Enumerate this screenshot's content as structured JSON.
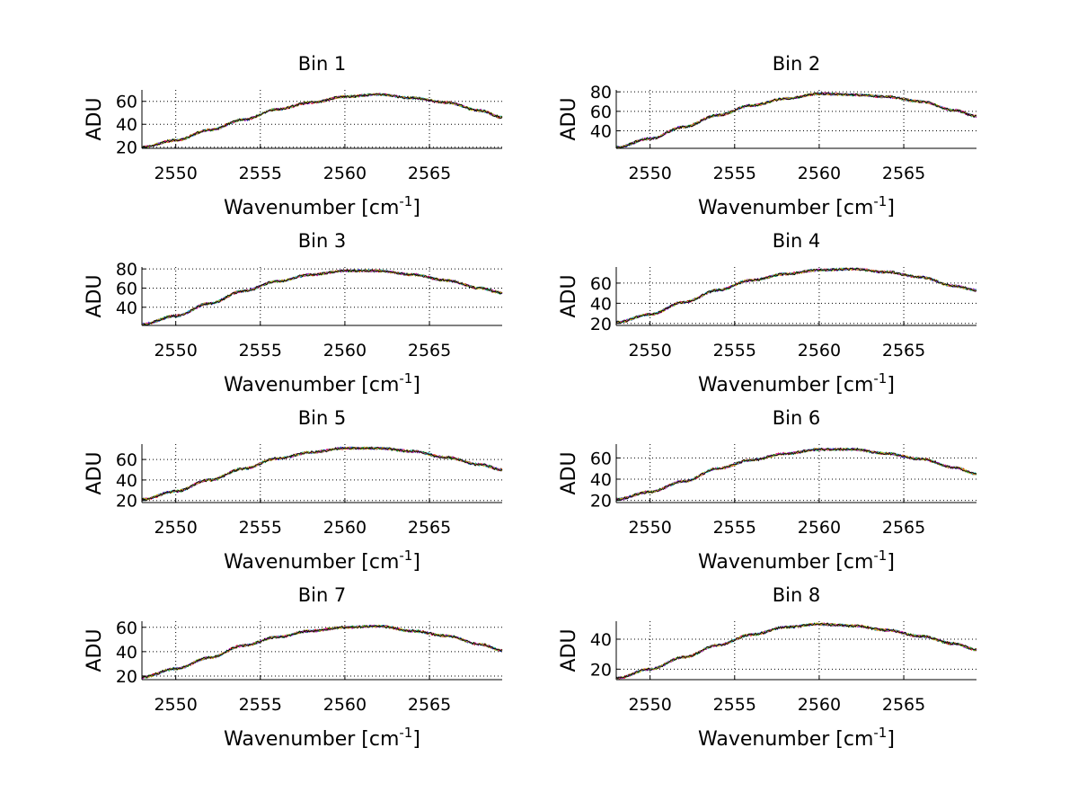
{
  "figure": {
    "background": "#ffffff",
    "series_colors": [
      "#0000ff",
      "#00a000",
      "#ff0000",
      "#00bfbf",
      "#bf00bf",
      "#bfbf00",
      "#000000"
    ]
  },
  "chart_data": [
    {
      "type": "line",
      "title": "Bin 1",
      "xlabel": "Wavenumber [cm",
      "xlabel_sup": "-1",
      "xlabel_end": "]",
      "ylabel": "ADU",
      "xlim": [
        2548,
        2569.3
      ],
      "ylim": [
        19,
        70
      ],
      "xticks": [
        2550,
        2555,
        2560,
        2565
      ],
      "yticks": [
        20,
        40,
        60
      ],
      "grid": true,
      "x": [
        2548,
        2550,
        2552,
        2554,
        2556,
        2558,
        2560,
        2562,
        2564,
        2566,
        2568,
        2569.3
      ],
      "values": [
        20,
        26,
        35,
        44,
        53,
        59,
        64,
        66,
        63,
        59,
        52,
        46
      ]
    },
    {
      "type": "line",
      "title": "Bin 2",
      "xlabel": "Wavenumber [cm",
      "xlabel_sup": "-1",
      "xlabel_end": "]",
      "ylabel": "ADU",
      "xlim": [
        2548,
        2569.3
      ],
      "ylim": [
        22,
        82
      ],
      "xticks": [
        2550,
        2555,
        2560,
        2565
      ],
      "yticks": [
        40,
        60,
        80
      ],
      "grid": true,
      "x": [
        2548,
        2550,
        2552,
        2554,
        2556,
        2558,
        2560,
        2562,
        2564,
        2566,
        2568,
        2569.3
      ],
      "values": [
        23,
        32,
        44,
        56,
        66,
        73,
        78,
        77,
        75,
        70,
        61,
        55
      ]
    },
    {
      "type": "line",
      "title": "Bin 3",
      "xlabel": "Wavenumber [cm",
      "xlabel_sup": "-1",
      "xlabel_end": "]",
      "ylabel": "ADU",
      "xlim": [
        2548,
        2569.3
      ],
      "ylim": [
        21,
        82
      ],
      "xticks": [
        2550,
        2555,
        2560,
        2565
      ],
      "yticks": [
        40,
        60,
        80
      ],
      "grid": true,
      "x": [
        2548,
        2550,
        2552,
        2554,
        2556,
        2558,
        2560,
        2562,
        2564,
        2566,
        2568,
        2569.3
      ],
      "values": [
        22,
        31,
        44,
        57,
        67,
        74,
        78,
        78,
        74,
        68,
        60,
        55
      ]
    },
    {
      "type": "line",
      "title": "Bin 4",
      "xlabel": "Wavenumber [cm",
      "xlabel_sup": "-1",
      "xlabel_end": "]",
      "ylabel": "ADU",
      "xlim": [
        2548,
        2569.3
      ],
      "ylim": [
        18,
        76
      ],
      "xticks": [
        2550,
        2555,
        2560,
        2565
      ],
      "yticks": [
        20,
        40,
        60
      ],
      "grid": true,
      "x": [
        2548,
        2550,
        2552,
        2554,
        2556,
        2558,
        2560,
        2562,
        2564,
        2566,
        2568,
        2569.3
      ],
      "values": [
        21,
        29,
        41,
        53,
        63,
        69,
        73,
        74,
        71,
        66,
        57,
        53
      ]
    },
    {
      "type": "line",
      "title": "Bin 5",
      "xlabel": "Wavenumber [cm",
      "xlabel_sup": "-1",
      "xlabel_end": "]",
      "ylabel": "ADU",
      "xlim": [
        2548,
        2569.3
      ],
      "ylim": [
        18,
        75
      ],
      "xticks": [
        2550,
        2555,
        2560,
        2565
      ],
      "yticks": [
        20,
        40,
        60
      ],
      "grid": true,
      "x": [
        2548,
        2550,
        2552,
        2554,
        2556,
        2558,
        2560,
        2562,
        2564,
        2566,
        2568,
        2569.3
      ],
      "values": [
        21,
        29,
        40,
        51,
        61,
        67,
        71,
        71,
        68,
        62,
        55,
        50
      ]
    },
    {
      "type": "line",
      "title": "Bin 6",
      "xlabel": "Wavenumber [cm",
      "xlabel_sup": "-1",
      "xlabel_end": "]",
      "ylabel": "ADU",
      "xlim": [
        2548,
        2569.3
      ],
      "ylim": [
        18,
        73
      ],
      "xticks": [
        2550,
        2555,
        2560,
        2565
      ],
      "yticks": [
        20,
        40,
        60
      ],
      "grid": true,
      "x": [
        2548,
        2550,
        2552,
        2554,
        2556,
        2558,
        2560,
        2562,
        2564,
        2566,
        2568,
        2569.3
      ],
      "values": [
        21,
        28,
        38,
        50,
        58,
        64,
        68,
        68,
        64,
        59,
        51,
        45
      ]
    },
    {
      "type": "line",
      "title": "Bin 7",
      "xlabel": "Wavenumber [cm",
      "xlabel_sup": "-1",
      "xlabel_end": "]",
      "ylabel": "ADU",
      "xlim": [
        2548,
        2569.3
      ],
      "ylim": [
        17,
        65
      ],
      "xticks": [
        2550,
        2555,
        2560,
        2565
      ],
      "yticks": [
        20,
        40,
        60
      ],
      "grid": true,
      "x": [
        2548,
        2550,
        2552,
        2554,
        2556,
        2558,
        2560,
        2562,
        2564,
        2566,
        2568,
        2569.3
      ],
      "values": [
        19,
        26,
        35,
        45,
        52,
        57,
        60,
        61,
        57,
        53,
        46,
        41
      ]
    },
    {
      "type": "line",
      "title": "Bin 8",
      "xlabel": "Wavenumber [cm",
      "xlabel_sup": "-1",
      "xlabel_end": "]",
      "ylabel": "ADU",
      "xlim": [
        2548,
        2569.3
      ],
      "ylim": [
        13,
        52
      ],
      "xticks": [
        2550,
        2555,
        2560,
        2565
      ],
      "yticks": [
        20,
        40
      ],
      "grid": true,
      "x": [
        2548,
        2550,
        2552,
        2554,
        2556,
        2558,
        2560,
        2562,
        2564,
        2566,
        2568,
        2569.3
      ],
      "values": [
        14,
        20,
        28,
        36,
        43,
        48,
        50,
        49,
        46,
        42,
        37,
        33
      ]
    }
  ]
}
